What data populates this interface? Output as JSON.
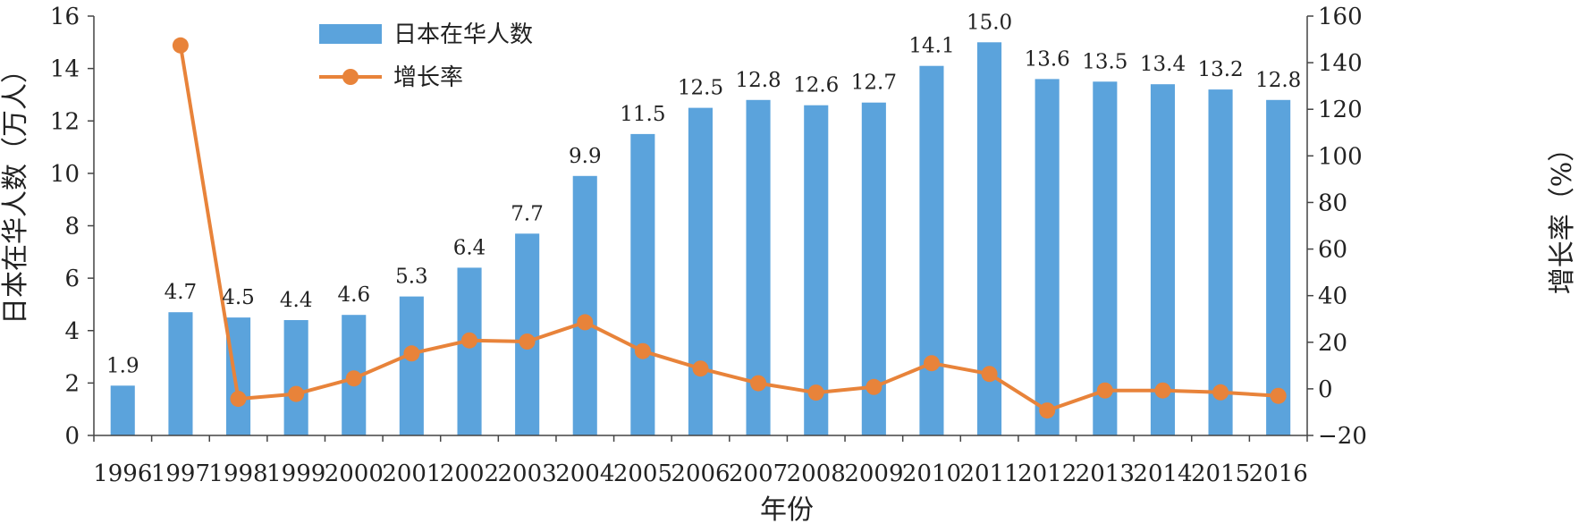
{
  "chart_data": {
    "type": "bar",
    "title": "",
    "xlabel": "年份",
    "ylabel_left": "日本在华人数（万人）",
    "ylabel_right": "增长率（%）",
    "ylim_left": [
      0,
      16
    ],
    "ylim_right": [
      -20,
      160
    ],
    "yticks_left": [
      "0",
      "2",
      "4",
      "6",
      "8",
      "10",
      "12",
      "14",
      "16"
    ],
    "yticks_right": [
      "−20",
      "0",
      "20",
      "40",
      "60",
      "80",
      "100",
      "120",
      "140",
      "160"
    ],
    "grid": false,
    "legend_position": "top-left",
    "categories": [
      "1996",
      "1997",
      "1998",
      "1999",
      "2000",
      "2001",
      "2002",
      "2003",
      "2004",
      "2005",
      "2006",
      "2007",
      "2008",
      "2009",
      "2010",
      "2011",
      "2012",
      "2013",
      "2014",
      "2015",
      "2016"
    ],
    "series": [
      {
        "name": "日本在华人数",
        "type": "bar",
        "axis": "left",
        "color": "#5BA3DC",
        "values": [
          1.9,
          4.7,
          4.5,
          4.4,
          4.6,
          5.3,
          6.4,
          7.7,
          9.9,
          11.5,
          12.5,
          12.8,
          12.6,
          12.7,
          14.1,
          15.0,
          13.6,
          13.5,
          13.4,
          13.2,
          12.8
        ],
        "labels": [
          "1.9",
          "4.7",
          "4.5",
          "4.4",
          "4.6",
          "5.3",
          "6.4",
          "7.7",
          "9.9",
          "11.5",
          "12.5",
          "12.8",
          "12.6",
          "12.7",
          "14.1",
          "15.0",
          "13.6",
          "13.5",
          "13.4",
          "13.2",
          "12.8"
        ]
      },
      {
        "name": "增长率",
        "type": "line",
        "axis": "right",
        "color": "#E8833A",
        "values": [
          null,
          147.4,
          -4.3,
          -2.2,
          4.5,
          15.2,
          20.8,
          20.3,
          28.6,
          16.2,
          8.7,
          2.4,
          -1.6,
          0.8,
          11.0,
          6.4,
          -9.3,
          -0.7,
          -0.7,
          -1.5,
          -3.0
        ]
      }
    ]
  }
}
